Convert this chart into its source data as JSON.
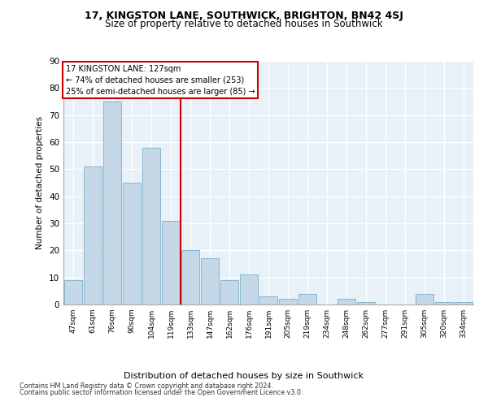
{
  "title": "17, KINGSTON LANE, SOUTHWICK, BRIGHTON, BN42 4SJ",
  "subtitle": "Size of property relative to detached houses in Southwick",
  "xlabel": "Distribution of detached houses by size in Southwick",
  "ylabel": "Number of detached properties",
  "categories": [
    "47sqm",
    "61sqm",
    "76sqm",
    "90sqm",
    "104sqm",
    "119sqm",
    "133sqm",
    "147sqm",
    "162sqm",
    "176sqm",
    "191sqm",
    "205sqm",
    "219sqm",
    "234sqm",
    "248sqm",
    "262sqm",
    "277sqm",
    "291sqm",
    "305sqm",
    "320sqm",
    "334sqm"
  ],
  "values": [
    9,
    51,
    75,
    45,
    58,
    31,
    20,
    17,
    9,
    11,
    3,
    2,
    4,
    0,
    2,
    1,
    0,
    0,
    4,
    1,
    1
  ],
  "bar_color": "#c5d8e8",
  "bar_edge_color": "#7aaec8",
  "highlight_line_bin_index": 5.5,
  "annotation_text": "17 KINGSTON LANE: 127sqm\n← 74% of detached houses are smaller (253)\n25% of semi-detached houses are larger (85) →",
  "annotation_box_color": "#ffffff",
  "annotation_box_edge_color": "#cc0000",
  "vline_color": "#cc0000",
  "ylim": [
    0,
    90
  ],
  "yticks": [
    0,
    10,
    20,
    30,
    40,
    50,
    60,
    70,
    80,
    90
  ],
  "background_color": "#e8f0f8",
  "grid_color": "#ffffff",
  "footer_line1": "Contains HM Land Registry data © Crown copyright and database right 2024.",
  "footer_line2": "Contains public sector information licensed under the Open Government Licence v3.0."
}
